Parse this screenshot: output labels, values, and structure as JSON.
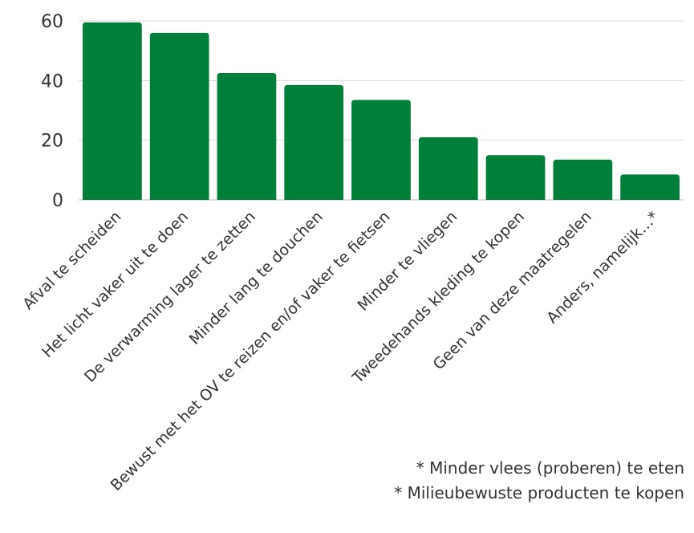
{
  "chart_data": {
    "type": "bar",
    "categories": [
      "Afval te scheiden",
      "Het licht vaker uit te doen",
      "De verwarming lager te zetten",
      "Minder lang te douchen",
      "Bewust met het OV te reizen en/of vaker te fietsen",
      "Minder te vliegen",
      "Tweedehands kleding te kopen",
      "Geen van deze maatregelen",
      "Anders, namelijk…*"
    ],
    "values": [
      59.5,
      56,
      42.5,
      38.5,
      33.5,
      21,
      15,
      13.5,
      8.5
    ],
    "ylim": [
      0,
      60
    ],
    "yticks": [
      0,
      20,
      40,
      60
    ],
    "grid": true,
    "bar_color": "#007f38",
    "title": "",
    "xlabel": "",
    "ylabel": ""
  },
  "footnotes": [
    "* Minder vlees (proberen) te eten",
    "* Milieubewuste producten te kopen"
  ]
}
